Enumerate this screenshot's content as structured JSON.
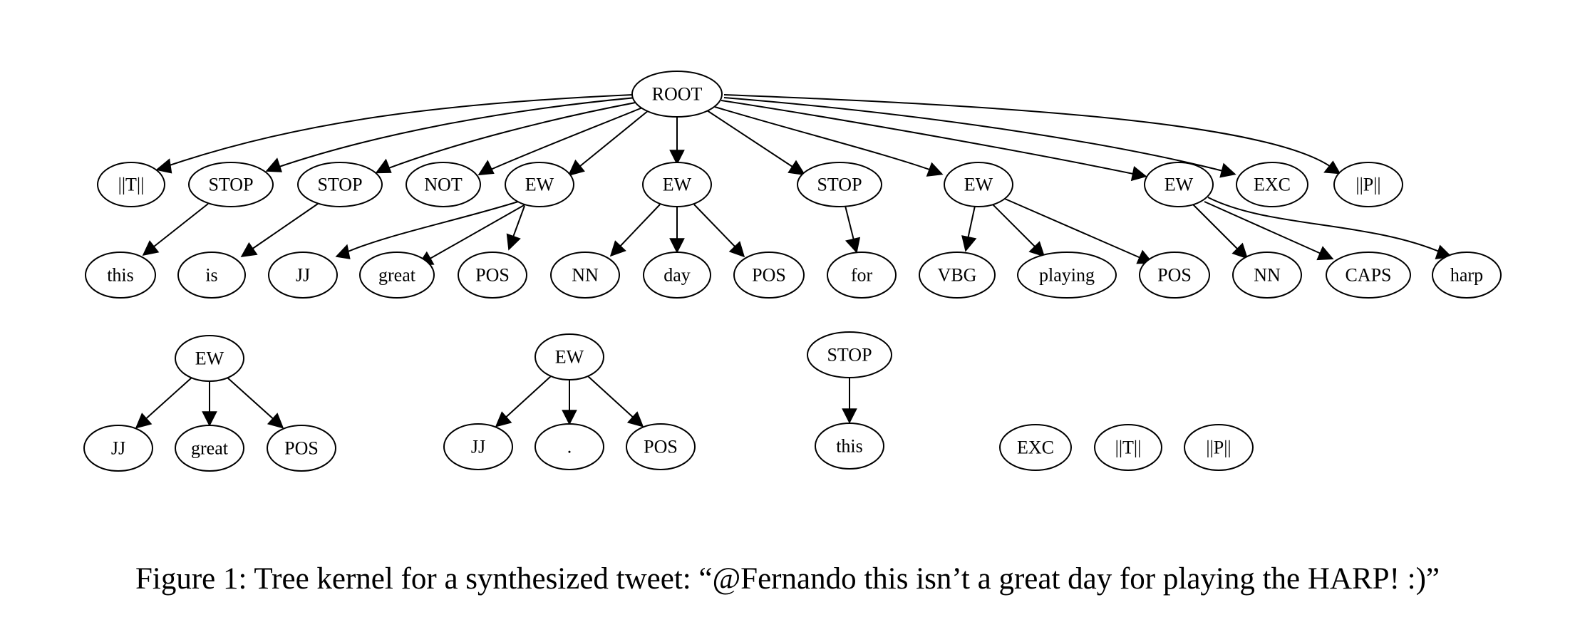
{
  "figure": {
    "caption": "Figure 1: Tree kernel for a synthesized tweet: “@Fernando this isn’t a great day for playing the HARP! :)”"
  },
  "nodes": {
    "root": "ROOT",
    "t1": "||T||",
    "stop1": "STOP",
    "stop2": "STOP",
    "not": "NOT",
    "ew1": "EW",
    "ew2": "EW",
    "stop3": "STOP",
    "ew3": "EW",
    "ew4": "EW",
    "exc": "EXC",
    "p1": "||P||",
    "this": "this",
    "is": "is",
    "jj1": "JJ",
    "great1": "great",
    "pos1": "POS",
    "nn1": "NN",
    "day": "day",
    "pos2": "POS",
    "for": "for",
    "vbg": "VBG",
    "playing": "playing",
    "pos3": "POS",
    "nn2": "NN",
    "caps": "CAPS",
    "harp": "harp",
    "s_ew1": "EW",
    "s_jj1": "JJ",
    "s_great": "great",
    "s_pos1": "POS",
    "s_ew2": "EW",
    "s_jj2": "JJ",
    "s_dot": ".",
    "s_pos2": "POS",
    "s_stop": "STOP",
    "s_this": "this",
    "s_exc": "EXC",
    "s_t": "||T||",
    "s_p": "||P||"
  }
}
